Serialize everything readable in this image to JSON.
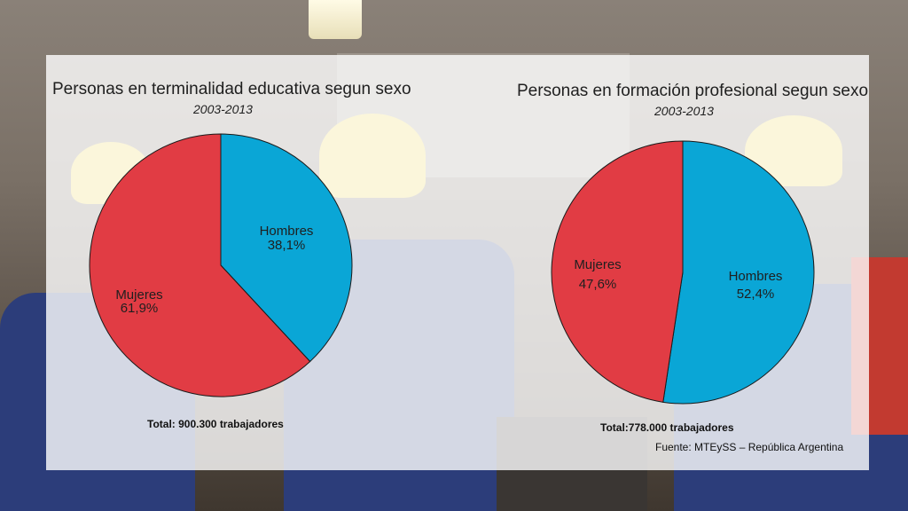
{
  "colors": {
    "hombres": "#0aa6d6",
    "mujeres": "#e13c44",
    "stroke": "#1a1a1a"
  },
  "chart_data": [
    {
      "type": "pie",
      "title": "Personas en terminalidad educativa segun sexo",
      "subtitle": "2003-2013",
      "slices": [
        {
          "label": "Hombres",
          "value": 38.1,
          "value_text": "38,1%",
          "color": "#0aa6d6"
        },
        {
          "label": "Mujeres",
          "value": 61.9,
          "value_text": "61,9%",
          "color": "#e13c44"
        }
      ],
      "total_text": "Total: 900.300 trabajadores"
    },
    {
      "type": "pie",
      "title": "Personas en formación profesional segun sexo",
      "subtitle": "2003-2013",
      "slices": [
        {
          "label": "Hombres",
          "value": 52.4,
          "value_text": "52,4%",
          "color": "#0aa6d6"
        },
        {
          "label": "Mujeres",
          "value": 47.6,
          "value_text": "47,6%",
          "color": "#e13c44"
        }
      ],
      "total_text": "Total:778.000 trabajadores"
    }
  ],
  "source": "Fuente: MTEySS – República Argentina"
}
